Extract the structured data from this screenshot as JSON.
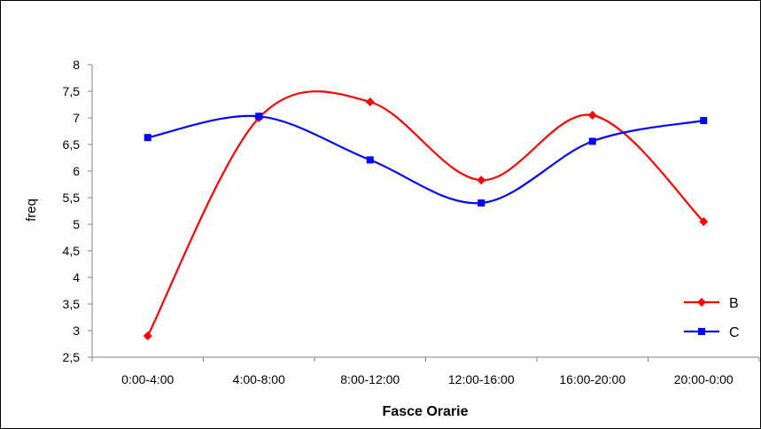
{
  "chart_data": {
    "type": "line",
    "categories": [
      "0:00-4:00",
      "4:00-8:00",
      "8:00-12:00",
      "12:00-16:00",
      "16:00-20:00",
      "20:00-0:00"
    ],
    "series": [
      {
        "name": "B",
        "color": "#ff0000",
        "marker": "diamond",
        "values": [
          2.9,
          7.0,
          7.3,
          5.83,
          7.05,
          5.05
        ]
      },
      {
        "name": "C",
        "color": "#0000ff",
        "marker": "square",
        "values": [
          6.63,
          7.03,
          6.21,
          5.4,
          6.56,
          6.95
        ]
      }
    ],
    "title": "",
    "xlabel": "Fasce Orarie",
    "ylabel": "freq",
    "ylim": [
      2.5,
      8
    ],
    "yticks": [
      "2,5",
      "3",
      "3,5",
      "4",
      "4,5",
      "5",
      "5,5",
      "6",
      "6,5",
      "7",
      "7,5",
      "8"
    ],
    "smooth": true,
    "grid": false,
    "legend_position": "bottom-right"
  }
}
